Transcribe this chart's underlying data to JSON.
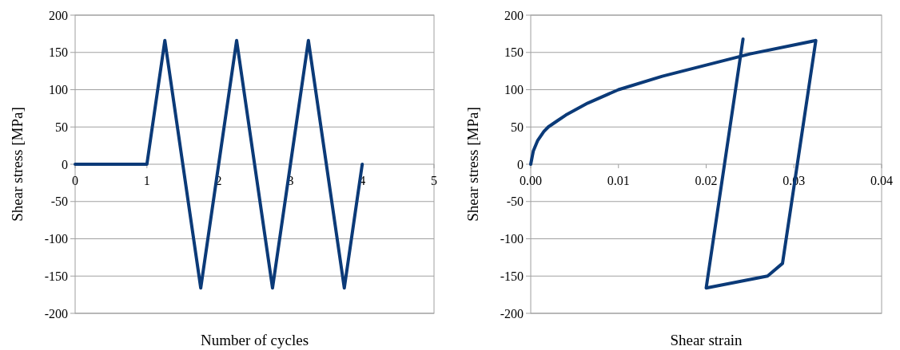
{
  "chart_data": [
    {
      "type": "line",
      "xlabel": "Number of cycles",
      "ylabel": "Shear stress [MPa]",
      "xlim": [
        0,
        5
      ],
      "xticks": [
        0,
        1,
        2,
        3,
        4,
        5
      ],
      "ylim": [
        -200,
        200
      ],
      "yticks": [
        -200,
        -150,
        -100,
        -50,
        0,
        50,
        100,
        150,
        200
      ],
      "grid": "y",
      "marker": "none",
      "line_style": "solid",
      "series": [
        {
          "color": "#0b3a78",
          "x": [
            0,
            1,
            1.25,
            1.75,
            2.25,
            2.75,
            3.25,
            3.75,
            4
          ],
          "values": [
            0,
            0,
            166,
            -166,
            166,
            -166,
            166,
            -166,
            0
          ]
        }
      ]
    },
    {
      "type": "line",
      "xlabel": "Shear strain",
      "ylabel": "Shear stress [MPa]",
      "xlim": [
        0,
        0.04
      ],
      "xticks": [
        {
          "value": 0,
          "label": "0.00"
        },
        {
          "value": 0.01,
          "label": "0.01"
        },
        {
          "value": 0.02,
          "label": "0.02"
        },
        {
          "value": 0.03,
          "label": "0.03"
        },
        {
          "value": 0.04,
          "label": "0.04"
        }
      ],
      "ylim": [
        -200,
        200
      ],
      "yticks": [
        -200,
        -150,
        -100,
        -50,
        0,
        50,
        100,
        150,
        200
      ],
      "grid": "y",
      "marker": "none",
      "line_style": "solid",
      "series": [
        {
          "color": "#0b3a78",
          "x": [
            0,
            0.0003,
            0.0008,
            0.0015,
            0.002,
            0.003,
            0.004,
            0.0065,
            0.01,
            0.015,
            0.02,
            0.025,
            0.0325,
            0.0287,
            0.027,
            0.02,
            0.0242
          ],
          "values": [
            0,
            18,
            32,
            44,
            50,
            58,
            66,
            82,
            100,
            118,
            133,
            148,
            166,
            -133,
            -150,
            -166,
            168
          ]
        }
      ]
    }
  ]
}
